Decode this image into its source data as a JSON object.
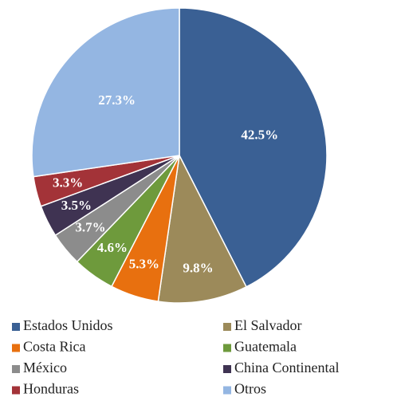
{
  "chart_data": {
    "type": "pie",
    "categories": [
      "Estados Unidos",
      "El Salvador",
      "Costa Rica",
      "Guatemala",
      "México",
      "China Continental",
      "Honduras",
      "Otros"
    ],
    "values": [
      42.5,
      9.8,
      5.3,
      4.6,
      3.7,
      3.5,
      3.3,
      27.3
    ],
    "value_labels": [
      "42.5%",
      "9.8%",
      "5.3%",
      "4.6%",
      "3.7%",
      "3.5%",
      "3.3%",
      "27.3%"
    ],
    "colors": [
      "#3a6094",
      "#9c8a5a",
      "#e8700f",
      "#6e9a3c",
      "#8c8c8c",
      "#3f3352",
      "#a33338",
      "#94b6e2"
    ]
  }
}
